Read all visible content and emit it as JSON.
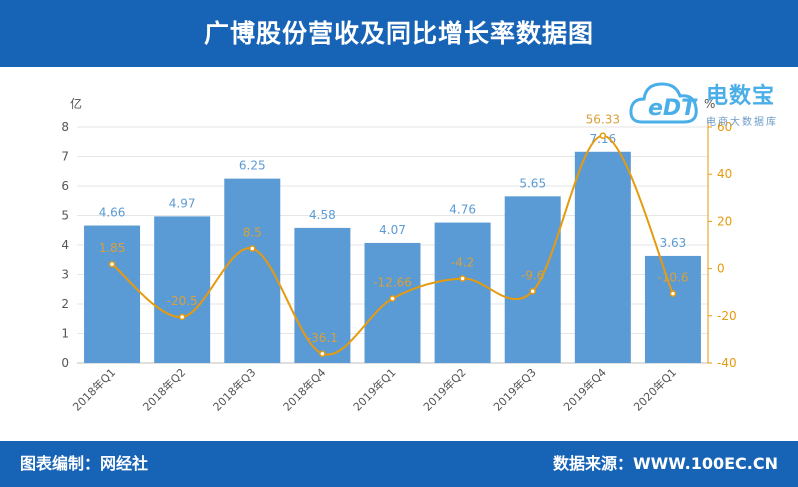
{
  "header": {
    "title": "广博股份营收及同比增长率数据图"
  },
  "footer": {
    "left": "图表编制：网经社",
    "right": "数据来源：WWW.100EC.CN"
  },
  "logo": {
    "main": "电数宝",
    "sub": "电商大数据库",
    "badge": "eDT"
  },
  "colors": {
    "header_bg": "#1763b5",
    "bar": "#5b9bd5",
    "line": "#e69a0e",
    "bar_label": "#5b9bd5",
    "line_label": "#d9a03a"
  },
  "chart_data": {
    "type": "bar",
    "categories": [
      "2018年Q1",
      "2018年Q2",
      "2018年Q3",
      "2018年Q4",
      "2019年Q1",
      "2019年Q2",
      "2019年Q3",
      "2019年Q4",
      "2020年Q1"
    ],
    "series": [
      {
        "values": [
          4.66,
          4.97,
          6.25,
          4.58,
          4.07,
          4.76,
          5.65,
          7.16,
          3.63
        ],
        "axis": "left",
        "kind": "bar"
      },
      {
        "values": [
          1.85,
          -20.5,
          8.5,
          -36.1,
          -12.66,
          -4.2,
          -9.6,
          56.33,
          -10.6
        ],
        "axis": "right",
        "kind": "line"
      }
    ],
    "bar_labels": [
      "4.66",
      "4.97",
      "6.25",
      "4.58",
      "4.07",
      "4.76",
      "5.65",
      "7.16",
      "3.63"
    ],
    "line_labels": [
      "1.85",
      "-20.5",
      "8.5",
      "-36.1",
      "-12.66",
      "-4.2",
      "-9.6",
      "56.33",
      "-10.6"
    ],
    "ylabel": "亿",
    "y2label": "%",
    "ylim": [
      0,
      8
    ],
    "y2lim": [
      -40,
      60
    ],
    "yticks": [
      "0",
      "1",
      "2",
      "3",
      "4",
      "5",
      "6",
      "7",
      "8"
    ],
    "y2ticks": [
      "-40",
      "-20",
      "0",
      "20",
      "40",
      "60"
    ],
    "grid": true
  }
}
